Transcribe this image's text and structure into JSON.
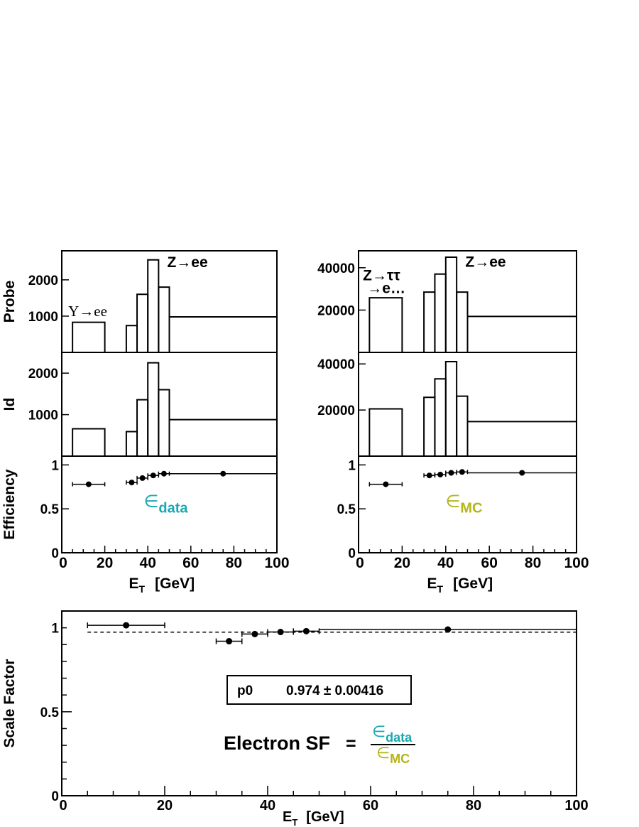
{
  "colors": {
    "data": "#1aa8b0",
    "mc": "#b5b51a",
    "sf": "#a50f0f",
    "ink": "#000000"
  },
  "chart_data": [
    {
      "id": "data_panel",
      "type": "histogram",
      "x_axis": {
        "label_main": "E",
        "label_sub": "T",
        "label_unit": "[GeV]",
        "range": [
          0,
          100
        ],
        "ticks": [
          "0",
          "20",
          "40",
          "60",
          "80",
          "100"
        ]
      },
      "subplots": [
        {
          "id": "probe",
          "ylabel": "Probe",
          "ylim": [
            0,
            2800
          ],
          "yticks": [
            1000,
            2000
          ],
          "bins": [
            {
              "x0": 5,
              "x1": 20,
              "y": 830
            },
            {
              "x0": 30,
              "x1": 35,
              "y": 740
            },
            {
              "x0": 35,
              "x1": 40,
              "y": 1600
            },
            {
              "x0": 40,
              "x1": 45,
              "y": 2550
            },
            {
              "x0": 45,
              "x1": 50,
              "y": 1800
            },
            {
              "x0": 50,
              "x1": 100,
              "y": 980
            }
          ],
          "annotations": [
            {
              "text": "Z→ee",
              "x": 49,
              "y": 2350
            },
            {
              "text": "Υ→ee",
              "x": 3,
              "y": 1000,
              "serif": true
            }
          ]
        },
        {
          "id": "id",
          "ylabel": "Id",
          "ylim": [
            0,
            2500
          ],
          "yticks": [
            1000,
            2000
          ],
          "bins": [
            {
              "x0": 5,
              "x1": 20,
              "y": 660
            },
            {
              "x0": 30,
              "x1": 35,
              "y": 590
            },
            {
              "x0": 35,
              "x1": 40,
              "y": 1360
            },
            {
              "x0": 40,
              "x1": 45,
              "y": 2250
            },
            {
              "x0": 45,
              "x1": 50,
              "y": 1600
            },
            {
              "x0": 50,
              "x1": 100,
              "y": 880
            }
          ]
        },
        {
          "id": "eff",
          "type": "errorbar",
          "ylabel": "Efficiency",
          "ylim": [
            0,
            1.1
          ],
          "yticks": [
            {
              "v": 0,
              "label": "0"
            },
            {
              "v": 0.5,
              "label": "0.5"
            },
            {
              "v": 1,
              "label": "1"
            }
          ],
          "points": [
            {
              "x": 12.5,
              "xerr": 7.5,
              "y": 0.78
            },
            {
              "x": 32.5,
              "xerr": 2.5,
              "y": 0.8
            },
            {
              "x": 37.5,
              "xerr": 2.5,
              "y": 0.85
            },
            {
              "x": 42.5,
              "xerr": 2.5,
              "y": 0.88
            },
            {
              "x": 47.5,
              "xerr": 2.5,
              "y": 0.9
            },
            {
              "x": 75,
              "xerr": 25,
              "y": 0.9
            }
          ],
          "label_main": "∈",
          "label_sub": "data",
          "label_color": "data"
        }
      ]
    },
    {
      "id": "mc_panel",
      "type": "histogram",
      "x_axis": {
        "label_main": "E",
        "label_sub": "T",
        "label_unit": "[GeV]",
        "range": [
          0,
          100
        ],
        "ticks": [
          "0",
          "20",
          "40",
          "60",
          "80",
          "100"
        ]
      },
      "subplots": [
        {
          "id": "probe",
          "ylabel": "",
          "ylim": [
            0,
            48000
          ],
          "yticks": [
            20000,
            40000
          ],
          "bins": [
            {
              "x0": 5,
              "x1": 20,
              "y": 25800
            },
            {
              "x0": 30,
              "x1": 35,
              "y": 28500
            },
            {
              "x0": 35,
              "x1": 40,
              "y": 37000
            },
            {
              "x0": 40,
              "x1": 45,
              "y": 45000
            },
            {
              "x0": 45,
              "x1": 50,
              "y": 28500
            },
            {
              "x0": 50,
              "x1": 100,
              "y": 17000
            }
          ],
          "annotations": [
            {
              "text": "Z→ee",
              "x": 49,
              "y": 40500
            },
            {
              "text": "Z→ττ",
              "x": 2,
              "y": 34000,
              "tau": true
            },
            {
              "text": "→e…",
              "x": 4,
              "y": 28000
            }
          ]
        },
        {
          "id": "id",
          "ylabel": "",
          "ylim": [
            0,
            45000
          ],
          "yticks": [
            20000,
            40000
          ],
          "bins": [
            {
              "x0": 5,
              "x1": 20,
              "y": 20500
            },
            {
              "x0": 30,
              "x1": 35,
              "y": 25500
            },
            {
              "x0": 35,
              "x1": 40,
              "y": 33500
            },
            {
              "x0": 40,
              "x1": 45,
              "y": 41000
            },
            {
              "x0": 45,
              "x1": 50,
              "y": 26000
            },
            {
              "x0": 50,
              "x1": 100,
              "y": 15000
            }
          ]
        },
        {
          "id": "eff",
          "type": "errorbar",
          "ylabel": "",
          "ylim": [
            0,
            1.1
          ],
          "yticks": [
            {
              "v": 0,
              "label": "0"
            },
            {
              "v": 0.5,
              "label": "0.5"
            },
            {
              "v": 1,
              "label": "1"
            }
          ],
          "points": [
            {
              "x": 12.5,
              "xerr": 7.5,
              "y": 0.78
            },
            {
              "x": 32.5,
              "xerr": 2.5,
              "y": 0.88
            },
            {
              "x": 37.5,
              "xerr": 2.5,
              "y": 0.89
            },
            {
              "x": 42.5,
              "xerr": 2.5,
              "y": 0.91
            },
            {
              "x": 47.5,
              "xerr": 2.5,
              "y": 0.92
            },
            {
              "x": 75,
              "xerr": 25,
              "y": 0.91
            }
          ],
          "label_main": "∈",
          "label_sub": "MC",
          "label_color": "mc"
        }
      ]
    },
    {
      "id": "sf_panel",
      "type": "scatter",
      "ylabel": "Scale Factor",
      "x_axis": {
        "label_main": "E",
        "label_sub": "T",
        "label_unit": "[GeV]",
        "range": [
          0,
          100
        ],
        "ticks": [
          "0",
          "20",
          "40",
          "60",
          "80",
          "100"
        ]
      },
      "ylim": [
        0,
        1.1
      ],
      "yticks": [
        {
          "v": 0,
          "label": "0"
        },
        {
          "v": 0.5,
          "label": "0.5"
        },
        {
          "v": 1,
          "label": "1"
        }
      ],
      "points": [
        {
          "x": 12.5,
          "xerr": 7.5,
          "y": 1.015
        },
        {
          "x": 32.5,
          "xerr": 2.5,
          "y": 0.92
        },
        {
          "x": 37.5,
          "xerr": 2.5,
          "y": 0.963
        },
        {
          "x": 42.5,
          "xerr": 2.5,
          "y": 0.975
        },
        {
          "x": 47.5,
          "xerr": 2.5,
          "y": 0.98
        },
        {
          "x": 75,
          "xerr": 25,
          "y": 0.99
        }
      ],
      "fit": {
        "p0": 0.974,
        "err": 0.00416,
        "x0": 5,
        "x1": 100
      },
      "fit_label": "p0",
      "fit_text": "0.974 ± 0.00416",
      "formula": {
        "title": "Electron SF",
        "equals": "=",
        "num_main": "∈",
        "num_sub": "data",
        "den_main": "∈",
        "den_sub": "MC"
      }
    }
  ]
}
